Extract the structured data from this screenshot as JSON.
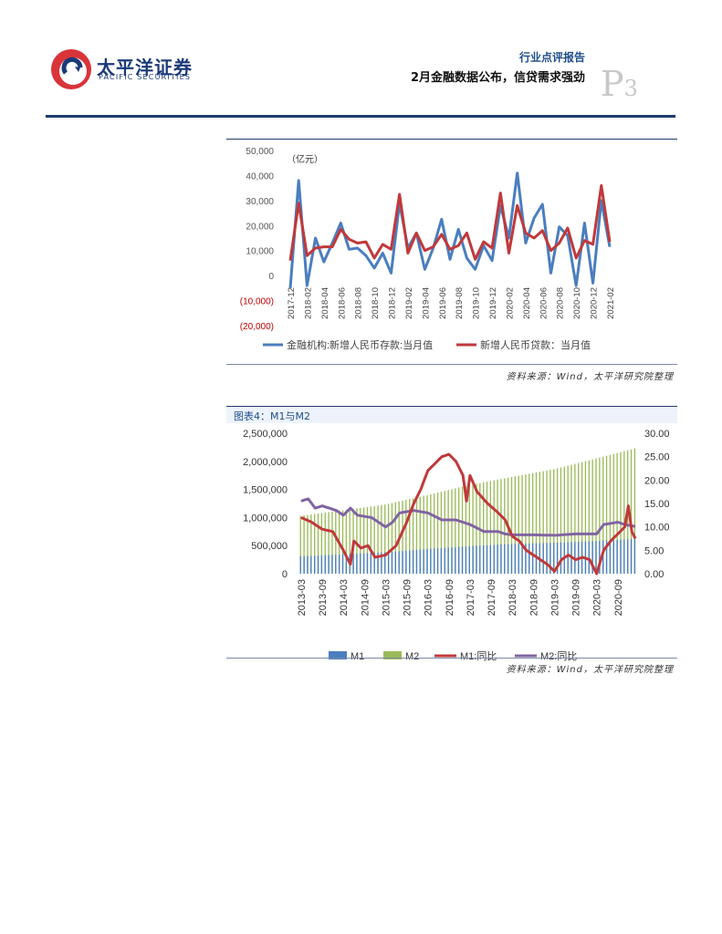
{
  "header": {
    "logo_cn": "太平洋证券",
    "logo_en": "PACIFIC SECURITIES",
    "report_type": "行业点评报告",
    "report_title": "2月金融数据公布，信贷需求强劲",
    "page_letter": "P",
    "page_number": "3"
  },
  "colors": {
    "blue": "#4a7ebf",
    "red": "#c0393b",
    "green": "#9bbb59",
    "purple": "#8064a2",
    "navy": "#1f3a6b"
  },
  "figure3": {
    "source": "资料来源：Wind，太平洋研究院整理",
    "chart_data": {
      "type": "line",
      "ylabel": "（亿元）",
      "ylim": [
        -20000,
        50000
      ],
      "y_ticks": [
        "50,000",
        "40,000",
        "30,000",
        "20,000",
        "10,000",
        "0",
        "(10,000)",
        "(20,000)"
      ],
      "x_tick_labels": [
        "2017-12",
        "2018-02",
        "2018-04",
        "2018-06",
        "2018-08",
        "2018-10",
        "2018-12",
        "2019-02",
        "2019-04",
        "2019-06",
        "2019-08",
        "2019-10",
        "2019-12",
        "2020-02",
        "2020-04",
        "2020-06",
        "2020-08",
        "2020-10",
        "2020-12",
        "2021-02"
      ],
      "series": [
        {
          "name": "金融机构:新增人民币存款:当月值",
          "color": "#4a7ebf",
          "values": [
            -5000,
            38000,
            -4000,
            15000,
            5500,
            13000,
            21000,
            10500,
            11000,
            8000,
            3000,
            9000,
            1000,
            29000,
            11000,
            17000,
            2500,
            11000,
            22500,
            6500,
            18500,
            7000,
            2500,
            12000,
            6000,
            28000,
            15000,
            41000,
            13000,
            23000,
            28500,
            1000,
            19500,
            16000,
            -4000,
            21000,
            -3000,
            30000,
            11500
          ]
        },
        {
          "name": "新增人民币贷款：当月值",
          "color": "#c0393b",
          "values": [
            6000,
            29000,
            8000,
            11000,
            11500,
            11500,
            18500,
            14500,
            13000,
            13500,
            7000,
            12500,
            10500,
            32500,
            9000,
            17000,
            10000,
            11500,
            16500,
            10500,
            12000,
            17000,
            6500,
            13500,
            11000,
            33000,
            9000,
            28000,
            17000,
            15000,
            18000,
            10000,
            13000,
            19000,
            7000,
            14000,
            12500,
            36000,
            13500
          ]
        }
      ]
    }
  },
  "figure4": {
    "title": "图表4：M1与M2",
    "source": "资料来源：Wind，太平洋研究院整理",
    "chart_data": {
      "type": "bar+line",
      "left_ylim": [
        0,
        2500000
      ],
      "right_ylim": [
        0,
        30
      ],
      "left_ticks": [
        "2,500,000",
        "2,000,000",
        "1,500,000",
        "1,000,000",
        "500,000",
        "0"
      ],
      "right_ticks": [
        "30.00",
        "25.00",
        "20.00",
        "15.00",
        "10.00",
        "5.00",
        "0.00"
      ],
      "x_tick_labels": [
        "2013-03",
        "2013-09",
        "2014-03",
        "2014-09",
        "2015-03",
        "2015-09",
        "2016-03",
        "2016-09",
        "2017-03",
        "2017-09",
        "2018-03",
        "2018-09",
        "2019-03",
        "2019-09",
        "2020-03",
        "2020-09"
      ],
      "x_start": "2013-03",
      "months": 96,
      "m1_anchors": [
        [
          0,
          310000
        ],
        [
          24,
          380000
        ],
        [
          36,
          440000
        ],
        [
          48,
          490000
        ],
        [
          60,
          530000
        ],
        [
          72,
          550000
        ],
        [
          84,
          580000
        ],
        [
          95,
          620000
        ]
      ],
      "m2_anchors": [
        [
          0,
          1030000
        ],
        [
          24,
          1230000
        ],
        [
          36,
          1400000
        ],
        [
          48,
          1580000
        ],
        [
          60,
          1720000
        ],
        [
          72,
          1860000
        ],
        [
          84,
          2050000
        ],
        [
          95,
          2230000
        ]
      ],
      "m1_yoy_anchors": [
        [
          0,
          12
        ],
        [
          3,
          11
        ],
        [
          6,
          9.5
        ],
        [
          9,
          9
        ],
        [
          12,
          5
        ],
        [
          14,
          2
        ],
        [
          15,
          7
        ],
        [
          17,
          5.5
        ],
        [
          19,
          6
        ],
        [
          21,
          3.5
        ],
        [
          24,
          4
        ],
        [
          27,
          6
        ],
        [
          30,
          11
        ],
        [
          32,
          15
        ],
        [
          34,
          18
        ],
        [
          36,
          22
        ],
        [
          40,
          25
        ],
        [
          42,
          25.5
        ],
        [
          44,
          24
        ],
        [
          46,
          21
        ],
        [
          47,
          15.5
        ],
        [
          48,
          21
        ],
        [
          50,
          17.5
        ],
        [
          53,
          15
        ],
        [
          56,
          13
        ],
        [
          58,
          11.5
        ],
        [
          60,
          8
        ],
        [
          62,
          7
        ],
        [
          64,
          5
        ],
        [
          66,
          4
        ],
        [
          68,
          3
        ],
        [
          70,
          2
        ],
        [
          72,
          0.5
        ],
        [
          74,
          3
        ],
        [
          76,
          4
        ],
        [
          78,
          3
        ],
        [
          80,
          3.5
        ],
        [
          82,
          3
        ],
        [
          84,
          0
        ],
        [
          86,
          5
        ],
        [
          88,
          7
        ],
        [
          90,
          8.5
        ],
        [
          92,
          10
        ],
        [
          93,
          14.5
        ],
        [
          94,
          9
        ],
        [
          95,
          7.5
        ]
      ],
      "m2_yoy_anchors": [
        [
          0,
          15.5
        ],
        [
          2,
          16
        ],
        [
          4,
          14
        ],
        [
          6,
          14.5
        ],
        [
          10,
          13.5
        ],
        [
          12,
          12.5
        ],
        [
          14,
          14
        ],
        [
          16,
          12.5
        ],
        [
          20,
          12
        ],
        [
          24,
          10
        ],
        [
          26,
          11
        ],
        [
          28,
          13
        ],
        [
          32,
          13.5
        ],
        [
          36,
          13
        ],
        [
          40,
          11.5
        ],
        [
          44,
          11.5
        ],
        [
          48,
          10.5
        ],
        [
          52,
          9
        ],
        [
          56,
          9
        ],
        [
          58,
          8.5
        ],
        [
          60,
          8.3
        ],
        [
          66,
          8.3
        ],
        [
          72,
          8.2
        ],
        [
          78,
          8.5
        ],
        [
          84,
          8.5
        ],
        [
          86,
          10.5
        ],
        [
          90,
          11
        ],
        [
          92,
          10.5
        ],
        [
          95,
          10.1
        ]
      ],
      "legend": [
        "M1",
        "M2",
        "M1:同比",
        "M2:同比"
      ]
    }
  }
}
